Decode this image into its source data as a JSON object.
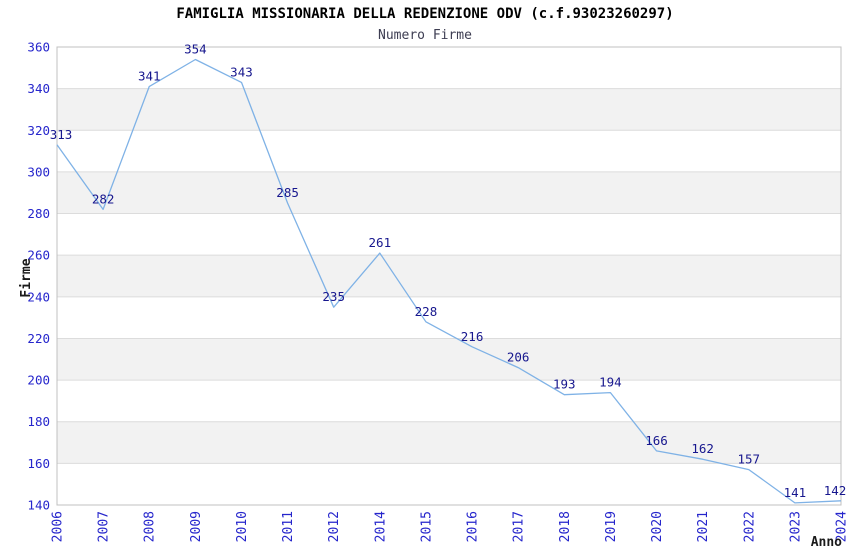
{
  "header": {
    "title": "FAMIGLIA MISSIONARIA DELLA REDENZIONE ODV (c.f.93023260297)",
    "subtitle": "Numero Firme"
  },
  "chart_data": {
    "type": "line",
    "title": "FAMIGLIA MISSIONARIA DELLA REDENZIONE ODV (c.f.93023260297)",
    "subtitle": "Numero Firme",
    "xlabel": "Anno",
    "ylabel": "Firme",
    "categories": [
      "2006",
      "2007",
      "2008",
      "2009",
      "2010",
      "2011",
      "2012",
      "2014",
      "2015",
      "2016",
      "2017",
      "2018",
      "2019",
      "2020",
      "2021",
      "2022",
      "2023",
      "2024"
    ],
    "series": [
      {
        "name": "Numero Firme",
        "values": [
          313,
          282,
          341,
          354,
          343,
          285,
          235,
          261,
          228,
          216,
          206,
          193,
          194,
          166,
          162,
          157,
          141,
          142
        ]
      }
    ],
    "data_labels_visible": true,
    "ylim": [
      140,
      360
    ],
    "ytick_step": 20,
    "yticks": [
      140,
      160,
      180,
      200,
      220,
      240,
      260,
      280,
      300,
      320,
      340,
      360
    ],
    "grid": "horizontal",
    "plot_background": "alternating-bands",
    "legend_position": "none",
    "x_tick_rotation_degrees": 90,
    "note": "year 2013 absent from axis",
    "colors": {
      "line": "#7fb2e6",
      "tick_label": "#2626cc",
      "data_label": "#17178e",
      "axis_title": "#1a1a1a",
      "band_gray": "#f2f2f2",
      "band_white": "#ffffff",
      "gridline": "#dcdcdc",
      "plot_border": "#c0c0c0",
      "background": "#ffffff",
      "title_color": "#000000",
      "subtitle_color": "#3d3d52"
    }
  }
}
